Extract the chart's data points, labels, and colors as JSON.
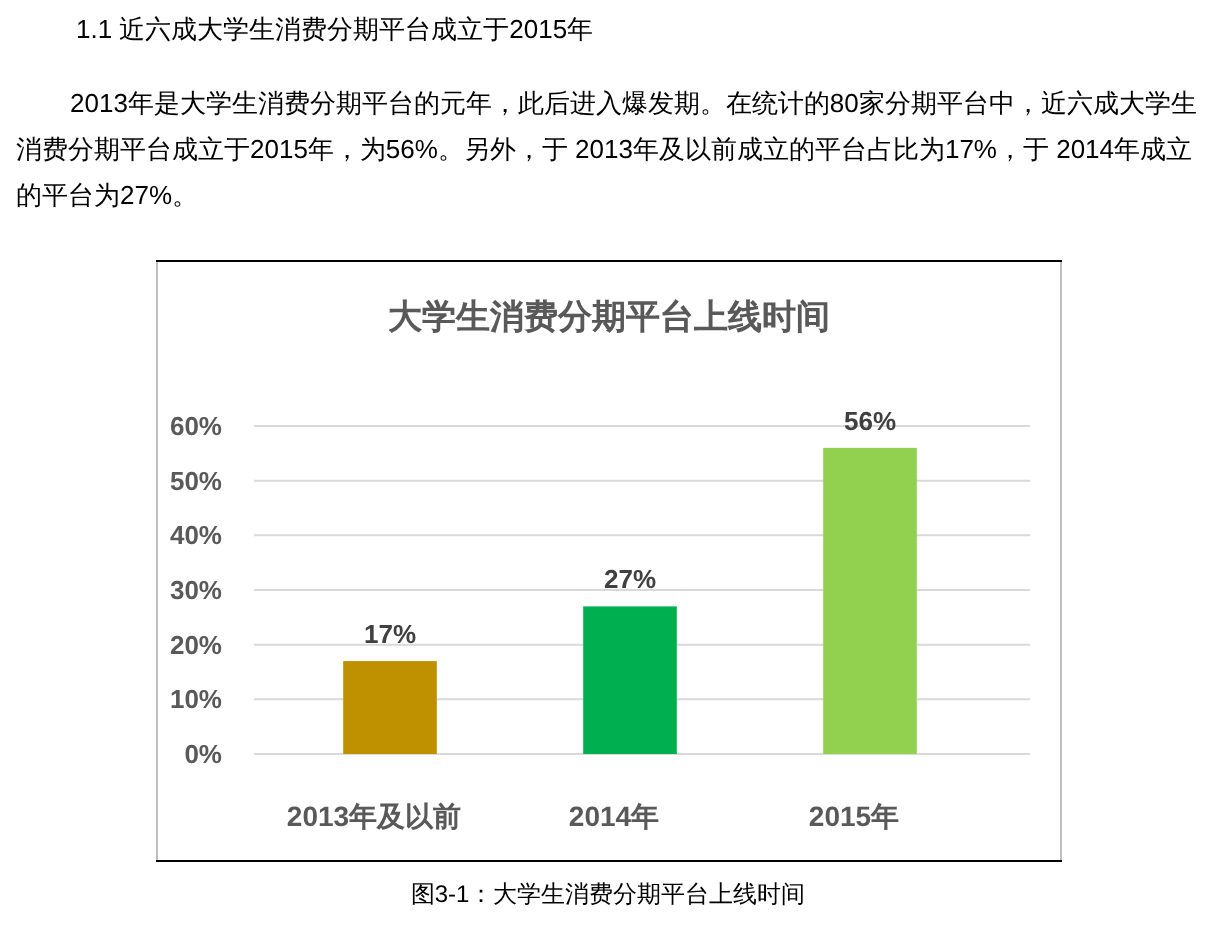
{
  "chart_data": {
    "type": "bar",
    "title": "大学生消费分期平台上线时间",
    "categories": [
      "2013年及以前",
      "2014年",
      "2015年"
    ],
    "values": [
      17,
      27,
      56
    ],
    "colors": [
      "#bf9000",
      "#00b050",
      "#92d050"
    ],
    "value_labels": [
      "17%",
      "27%",
      "56%"
    ],
    "ylim": [
      0,
      60
    ],
    "yticks": [
      {
        "value": 0,
        "label": "0%"
      },
      {
        "value": 10,
        "label": "10%"
      },
      {
        "value": 20,
        "label": "20%"
      },
      {
        "value": 30,
        "label": "30%"
      },
      {
        "value": 40,
        "label": "40%"
      },
      {
        "value": 50,
        "label": "50%"
      },
      {
        "value": 60,
        "label": "60%"
      }
    ],
    "grid": "y",
    "annotations": [
      "1.1 近六成大学生消费分期平台成立于2015年",
      "2013年是大学生消费分期平台的元年，此后进入爆发期。在统计的80家分期平台中，近六成大学生消费分期平台成立于2015年，为56%。另外，于 2013年及以前成立的平台占比为17%，于 2014年成立的平台为27%。",
      "图3-1：大学生消费分期平台上线时间"
    ]
  }
}
